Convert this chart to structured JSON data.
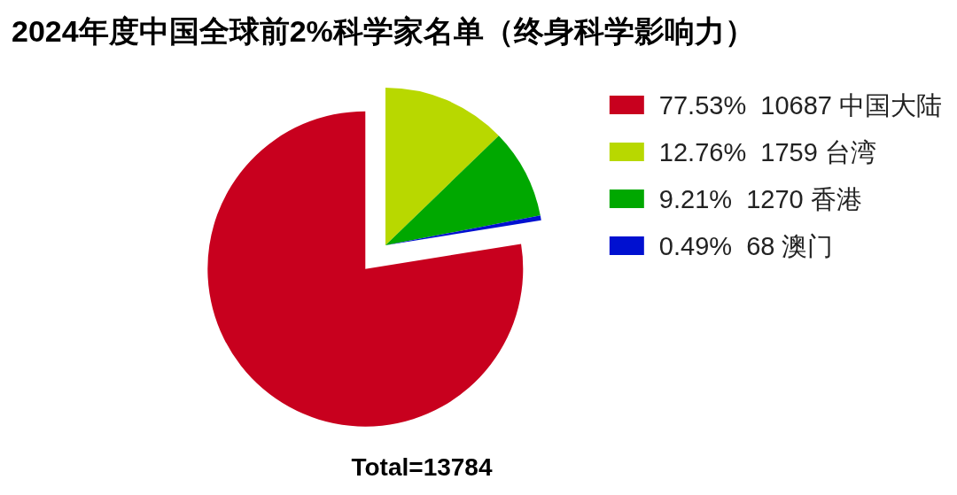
{
  "chart_data": {
    "type": "pie",
    "title": "2024年度中国全球前2%科学家名单（终身科学影响力）",
    "categories": [
      "77.53%  10687 中国大陆",
      "12.76%  1759 台湾",
      "9.21%  1270 香港",
      "0.49%  68 澳门"
    ],
    "values": [
      10687,
      1759,
      1270,
      68
    ],
    "colors": [
      "#c8001e",
      "#b8d800",
      "#00a800",
      "#0010d0"
    ],
    "legend": "top right",
    "annotations": [
      "Total=13784"
    ]
  }
}
